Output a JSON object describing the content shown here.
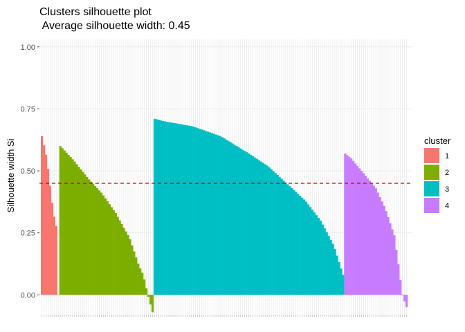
{
  "chart_data": {
    "type": "bar",
    "title": "Clusters silhouette plot",
    "subtitle": " Average silhouette width: 0.45",
    "xlabel": "",
    "ylabel": "Silhouette width Si",
    "ylim": [
      -0.08,
      1.03
    ],
    "yticks": [
      "0.00",
      "0.25",
      "0.50",
      "0.75",
      "1.00"
    ],
    "yticks_values": [
      0,
      0.25,
      0.5,
      0.75,
      1.0
    ],
    "grid": true,
    "legend_position": "right",
    "average_line": {
      "value": 0.45,
      "color": "#CC0000",
      "style": "dashed"
    },
    "legend": {
      "title": "cluster",
      "entries": [
        {
          "label": "1",
          "color": "#F8766D"
        },
        {
          "label": "2",
          "color": "#7CAE00"
        },
        {
          "label": "3",
          "color": "#00BFC4"
        },
        {
          "label": "4",
          "color": "#C77CFF"
        }
      ]
    },
    "clusters": [
      {
        "name": "1",
        "color": "#F8766D",
        "keypoints": [
          [
            0,
            0.64
          ],
          [
            0.1,
            0.61
          ],
          [
            0.3,
            0.55
          ],
          [
            0.5,
            0.44
          ],
          [
            0.7,
            0.33
          ],
          [
            0.9,
            0.27
          ],
          [
            1.0,
            0.0
          ]
        ],
        "n": 9
      },
      {
        "name": "2",
        "color": "#7CAE00",
        "keypoints": [
          [
            0,
            0.6
          ],
          [
            0.05,
            0.58
          ],
          [
            0.15,
            0.54
          ],
          [
            0.3,
            0.47
          ],
          [
            0.45,
            0.41
          ],
          [
            0.6,
            0.33
          ],
          [
            0.75,
            0.23
          ],
          [
            0.85,
            0.12
          ],
          [
            0.9,
            0.08
          ],
          [
            0.95,
            0.0
          ],
          [
            1.0,
            -0.07
          ]
        ],
        "n": 46
      },
      {
        "name": "3",
        "color": "#00BFC4",
        "keypoints": [
          [
            0,
            0.71
          ],
          [
            0.05,
            0.7
          ],
          [
            0.2,
            0.68
          ],
          [
            0.35,
            0.64
          ],
          [
            0.5,
            0.57
          ],
          [
            0.6,
            0.52
          ],
          [
            0.7,
            0.45
          ],
          [
            0.8,
            0.38
          ],
          [
            0.88,
            0.3
          ],
          [
            0.95,
            0.2
          ],
          [
            1.0,
            0.08
          ]
        ],
        "n": 93
      },
      {
        "name": "4",
        "color": "#C77CFF",
        "keypoints": [
          [
            0,
            0.57
          ],
          [
            0.1,
            0.55
          ],
          [
            0.3,
            0.49
          ],
          [
            0.5,
            0.43
          ],
          [
            0.65,
            0.35
          ],
          [
            0.8,
            0.24
          ],
          [
            0.88,
            0.1
          ],
          [
            0.93,
            0.0
          ],
          [
            1.0,
            -0.05
          ]
        ],
        "n": 31
      }
    ]
  }
}
